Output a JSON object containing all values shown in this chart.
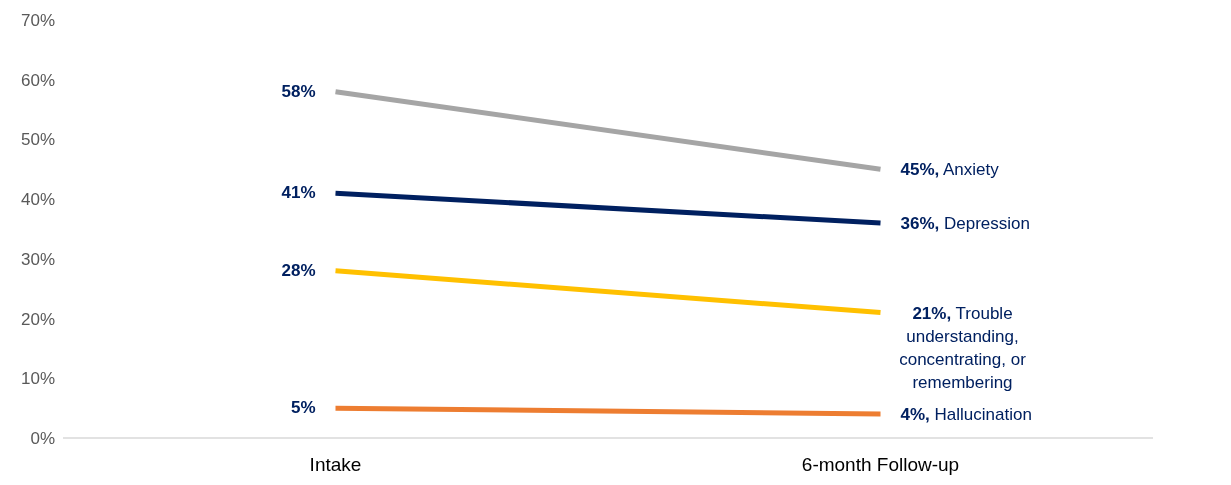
{
  "chart_data": {
    "type": "line",
    "categories": [
      "Intake",
      "6-month Follow-up"
    ],
    "series": [
      {
        "name": "Anxiety",
        "color": "#a5a5a5",
        "values": [
          58,
          45
        ],
        "value_labels": [
          "58%",
          "45%,"
        ]
      },
      {
        "name": "Depression",
        "color": "#002060",
        "values": [
          41,
          36
        ],
        "value_labels": [
          "41%",
          "36%,"
        ]
      },
      {
        "name": "Trouble understanding, concentrating, or remembering",
        "color": "#ffc000",
        "values": [
          28,
          21
        ],
        "value_labels": [
          "28%",
          "21%,"
        ]
      },
      {
        "name": "Hallucination",
        "color": "#ed7d31",
        "values": [
          5,
          4
        ],
        "value_labels": [
          "5%",
          "4%,"
        ]
      }
    ],
    "ylim": [
      0,
      70
    ],
    "yticks": [
      {
        "value": 0,
        "label": "0%"
      },
      {
        "value": 10,
        "label": "10%"
      },
      {
        "value": 20,
        "label": "20%"
      },
      {
        "value": 30,
        "label": "30%"
      },
      {
        "value": 40,
        "label": "40%"
      },
      {
        "value": 50,
        "label": "50%"
      },
      {
        "value": 60,
        "label": "60%"
      },
      {
        "value": 70,
        "label": "70%"
      }
    ],
    "grid": false,
    "legend": false
  }
}
